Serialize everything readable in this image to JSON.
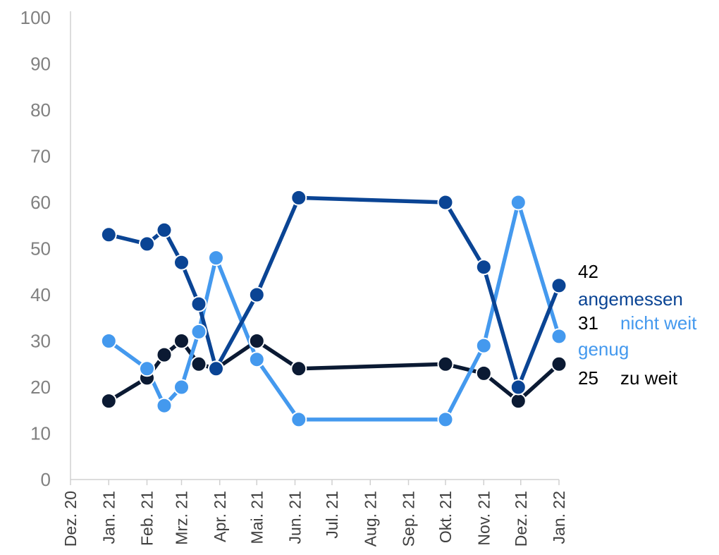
{
  "chart_data": {
    "type": "line",
    "title": "",
    "xlabel": "",
    "ylabel": "",
    "ylim": [
      0,
      100
    ],
    "yticks": [
      "0",
      "10",
      "20",
      "30",
      "40",
      "50",
      "60",
      "70",
      "80",
      "90",
      "100"
    ],
    "x_range": [
      "2020-12-01",
      "2022-01-01"
    ],
    "month_labels": [
      {
        "date": "2020-12-01",
        "label": "Dez. 20"
      },
      {
        "date": "2021-01-01",
        "label": "Jan. 21"
      },
      {
        "date": "2021-02-01",
        "label": "Feb. 21"
      },
      {
        "date": "2021-03-01",
        "label": "Mrz. 21"
      },
      {
        "date": "2021-04-01",
        "label": "Apr. 21"
      },
      {
        "date": "2021-05-01",
        "label": "Mai. 21"
      },
      {
        "date": "2021-06-01",
        "label": "Jun. 21"
      },
      {
        "date": "2021-07-01",
        "label": "Jul. 21"
      },
      {
        "date": "2021-08-01",
        "label": "Aug. 21"
      },
      {
        "date": "2021-09-01",
        "label": "Sep. 21"
      },
      {
        "date": "2021-10-01",
        "label": "Okt. 21"
      },
      {
        "date": "2021-11-01",
        "label": "Nov. 21"
      },
      {
        "date": "2021-12-01",
        "label": "Dez. 21"
      },
      {
        "date": "2022-01-01",
        "label": "Jan. 22"
      }
    ],
    "x": [
      "2021-01-01",
      "2021-02-01",
      "2021-02-15",
      "2021-03-01",
      "2021-03-15",
      "2021-03-29",
      "2021-05-01",
      "2021-06-04",
      "2021-10-01",
      "2021-11-01",
      "2021-11-29",
      "2022-01-01"
    ],
    "series": [
      {
        "name": "zu weit",
        "color": "#0b1a33",
        "values": [
          17,
          22,
          27,
          30,
          25,
          24,
          30,
          24,
          25,
          23,
          17,
          25
        ]
      },
      {
        "name": "nicht weit genug",
        "color": "#4499ee",
        "values": [
          30,
          24,
          16,
          20,
          32,
          48,
          26,
          13,
          13,
          29,
          60,
          31
        ]
      },
      {
        "name": "angemessen",
        "color": "#0a4494",
        "values": [
          53,
          51,
          54,
          47,
          38,
          24,
          40,
          61,
          60,
          46,
          20,
          42
        ]
      }
    ],
    "end_labels": [
      {
        "value": "42",
        "name": "angemessen",
        "name_line2": "",
        "value_color": "#000000",
        "name_color": "#0a4494"
      },
      {
        "value": "31",
        "name": "nicht weit",
        "name_line2": "genug",
        "value_color": "#000000",
        "name_color": "#4499ee"
      },
      {
        "value": "25",
        "name": "zu weit",
        "name_line2": "",
        "value_color": "#000000",
        "name_color": "#000000"
      }
    ],
    "grid": false,
    "legend": "none"
  }
}
